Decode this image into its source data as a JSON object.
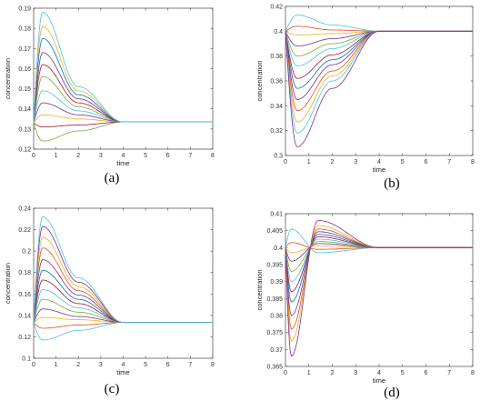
{
  "chart_data": [
    {
      "type": "line",
      "caption": "(a)",
      "xlabel": "time",
      "ylabel": "concentration",
      "xlim": [
        0,
        8
      ],
      "ylim": [
        0.12,
        0.19
      ],
      "xticks": [
        "0",
        "1",
        "2",
        "3",
        "4",
        "5",
        "6",
        "7",
        "8"
      ],
      "yticks": [
        "0.12",
        "0.13",
        "0.14",
        "0.15",
        "0.16",
        "0.17",
        "0.18",
        "0.19"
      ],
      "steady_state": 0.1335,
      "series": [
        {
          "color": "#77ac30",
          "x": [
            0,
            0.4,
            2,
            4,
            8
          ],
          "y": [
            0.133,
            0.124,
            0.129,
            0.1335,
            0.1335
          ]
        },
        {
          "color": "#a2142f",
          "x": [
            0,
            0.4,
            2,
            4,
            8
          ],
          "y": [
            0.133,
            0.131,
            0.132,
            0.1335,
            0.1335
          ]
        },
        {
          "color": "#edb120",
          "x": [
            0,
            0.4,
            2,
            4,
            8
          ],
          "y": [
            0.133,
            0.137,
            0.135,
            0.1335,
            0.1335
          ]
        },
        {
          "color": "#7e2f8e",
          "x": [
            0,
            0.4,
            2,
            4,
            8
          ],
          "y": [
            0.133,
            0.143,
            0.137,
            0.1335,
            0.1335
          ]
        },
        {
          "color": "#4dbeee",
          "x": [
            0,
            0.4,
            2,
            4,
            8
          ],
          "y": [
            0.133,
            0.149,
            0.139,
            0.1335,
            0.1335
          ]
        },
        {
          "color": "#77ac30",
          "x": [
            0,
            0.4,
            2,
            4,
            8
          ],
          "y": [
            0.133,
            0.156,
            0.141,
            0.1335,
            0.1335
          ]
        },
        {
          "color": "#a2142f",
          "x": [
            0,
            0.4,
            2,
            4,
            8
          ],
          "y": [
            0.133,
            0.162,
            0.143,
            0.1335,
            0.1335
          ]
        },
        {
          "color": "#7e2f8e",
          "x": [
            0,
            0.4,
            2,
            4,
            8
          ],
          "y": [
            0.133,
            0.168,
            0.145,
            0.1335,
            0.1335
          ]
        },
        {
          "color": "#0072bd",
          "x": [
            0,
            0.4,
            2,
            4,
            8
          ],
          "y": [
            0.133,
            0.175,
            0.147,
            0.1335,
            0.1335
          ]
        },
        {
          "color": "#edb120",
          "x": [
            0,
            0.4,
            2,
            4,
            8
          ],
          "y": [
            0.133,
            0.181,
            0.149,
            0.1335,
            0.1335
          ]
        },
        {
          "color": "#4dbeee",
          "x": [
            0,
            0.4,
            2,
            4,
            8
          ],
          "y": [
            0.133,
            0.188,
            0.151,
            0.1335,
            0.1335
          ]
        }
      ]
    },
    {
      "type": "line",
      "caption": "(b)",
      "xlabel": "time",
      "ylabel": "concentration",
      "xlim": [
        0,
        8
      ],
      "ylim": [
        0.3,
        0.42
      ],
      "xticks": [
        "0",
        "1",
        "2",
        "3",
        "4",
        "5",
        "6",
        "7",
        "8"
      ],
      "yticks": [
        "0.3",
        "0.32",
        "0.34",
        "0.36",
        "0.38",
        "0.4",
        "0.42"
      ],
      "steady_state": 0.4,
      "series": [
        {
          "color": "#4dbeee",
          "x": [
            0,
            0.5,
            2,
            4,
            8
          ],
          "y": [
            0.4,
            0.413,
            0.405,
            0.4,
            0.4
          ]
        },
        {
          "color": "#d95319",
          "x": [
            0,
            0.5,
            2,
            4,
            8
          ],
          "y": [
            0.4,
            0.404,
            0.401,
            0.4,
            0.4
          ]
        },
        {
          "color": "#edb120",
          "x": [
            0,
            0.5,
            2,
            4,
            8
          ],
          "y": [
            0.4,
            0.397,
            0.398,
            0.4,
            0.4
          ]
        },
        {
          "color": "#7e2f8e",
          "x": [
            0,
            0.5,
            2,
            4,
            8
          ],
          "y": [
            0.4,
            0.388,
            0.394,
            0.4,
            0.4
          ]
        },
        {
          "color": "#77ac30",
          "x": [
            0,
            0.5,
            2,
            4,
            8
          ],
          "y": [
            0.4,
            0.38,
            0.39,
            0.4,
            0.4
          ]
        },
        {
          "color": "#4dbeee",
          "x": [
            0,
            0.5,
            2,
            4,
            8
          ],
          "y": [
            0.4,
            0.372,
            0.386,
            0.4,
            0.4
          ]
        },
        {
          "color": "#a2142f",
          "x": [
            0,
            0.5,
            2,
            4,
            8
          ],
          "y": [
            0.4,
            0.362,
            0.381,
            0.4,
            0.4
          ]
        },
        {
          "color": "#0072bd",
          "x": [
            0,
            0.5,
            2,
            4,
            8
          ],
          "y": [
            0.4,
            0.354,
            0.377,
            0.4,
            0.4
          ]
        },
        {
          "color": "#7e2f8e",
          "x": [
            0,
            0.5,
            2,
            4,
            8
          ],
          "y": [
            0.4,
            0.345,
            0.373,
            0.4,
            0.4
          ]
        },
        {
          "color": "#d95319",
          "x": [
            0,
            0.5,
            2,
            4,
            8
          ],
          "y": [
            0.4,
            0.336,
            0.368,
            0.4,
            0.4
          ]
        },
        {
          "color": "#edb120",
          "x": [
            0,
            0.5,
            2,
            4,
            8
          ],
          "y": [
            0.4,
            0.327,
            0.364,
            0.4,
            0.4
          ]
        },
        {
          "color": "#4dbeee",
          "x": [
            0,
            0.5,
            2,
            4,
            8
          ],
          "y": [
            0.4,
            0.318,
            0.36,
            0.4,
            0.4
          ]
        },
        {
          "color": "#7e2f8e",
          "x": [
            0,
            0.5,
            2,
            4,
            8
          ],
          "y": [
            0.4,
            0.307,
            0.354,
            0.4,
            0.4
          ]
        }
      ]
    },
    {
      "type": "line",
      "caption": "(c)",
      "xlabel": "time",
      "ylabel": "concentration",
      "xlim": [
        0,
        8
      ],
      "ylim": [
        0.1,
        0.24
      ],
      "xticks": [
        "0",
        "1",
        "2",
        "3",
        "4",
        "5",
        "6",
        "7",
        "8"
      ],
      "yticks": [
        "0.1",
        "0.12",
        "0.14",
        "0.16",
        "0.18",
        "0.2",
        "0.22",
        "0.24"
      ],
      "steady_state": 0.1335,
      "series": [
        {
          "color": "#4dbeee",
          "x": [
            0,
            0.4,
            2,
            4,
            8
          ],
          "y": [
            0.133,
            0.117,
            0.126,
            0.1335,
            0.1335
          ]
        },
        {
          "color": "#d95319",
          "x": [
            0,
            0.4,
            2,
            4,
            8
          ],
          "y": [
            0.133,
            0.128,
            0.131,
            0.1335,
            0.1335
          ]
        },
        {
          "color": "#edb120",
          "x": [
            0,
            0.4,
            2,
            4,
            8
          ],
          "y": [
            0.133,
            0.138,
            0.136,
            0.1335,
            0.1335
          ]
        },
        {
          "color": "#7e2f8e",
          "x": [
            0,
            0.4,
            2,
            4,
            8
          ],
          "y": [
            0.133,
            0.146,
            0.139,
            0.1335,
            0.1335
          ]
        },
        {
          "color": "#77ac30",
          "x": [
            0,
            0.4,
            2,
            4,
            8
          ],
          "y": [
            0.133,
            0.155,
            0.143,
            0.1335,
            0.1335
          ]
        },
        {
          "color": "#4dbeee",
          "x": [
            0,
            0.4,
            2,
            4,
            8
          ],
          "y": [
            0.133,
            0.164,
            0.147,
            0.1335,
            0.1335
          ]
        },
        {
          "color": "#a2142f",
          "x": [
            0,
            0.4,
            2,
            4,
            8
          ],
          "y": [
            0.133,
            0.173,
            0.151,
            0.1335,
            0.1335
          ]
        },
        {
          "color": "#0072bd",
          "x": [
            0,
            0.4,
            2,
            4,
            8
          ],
          "y": [
            0.133,
            0.182,
            0.155,
            0.1335,
            0.1335
          ]
        },
        {
          "color": "#7e2f8e",
          "x": [
            0,
            0.4,
            2,
            4,
            8
          ],
          "y": [
            0.133,
            0.192,
            0.159,
            0.1335,
            0.1335
          ]
        },
        {
          "color": "#d95319",
          "x": [
            0,
            0.4,
            2,
            4,
            8
          ],
          "y": [
            0.133,
            0.203,
            0.163,
            0.1335,
            0.1335
          ]
        },
        {
          "color": "#edb120",
          "x": [
            0,
            0.4,
            2,
            4,
            8
          ],
          "y": [
            0.133,
            0.213,
            0.167,
            0.1335,
            0.1335
          ]
        },
        {
          "color": "#7e2f8e",
          "x": [
            0,
            0.4,
            2,
            4,
            8
          ],
          "y": [
            0.133,
            0.223,
            0.171,
            0.1335,
            0.1335
          ]
        },
        {
          "color": "#4dbeee",
          "x": [
            0,
            0.4,
            2,
            4,
            8
          ],
          "y": [
            0.133,
            0.232,
            0.175,
            0.1335,
            0.1335
          ]
        }
      ]
    },
    {
      "type": "line",
      "caption": "(d)",
      "xlabel": "time",
      "ylabel": "concentration",
      "xlim": [
        0,
        8
      ],
      "ylim": [
        0.365,
        0.41
      ],
      "xticks": [
        "0",
        "1",
        "2",
        "3",
        "4",
        "5",
        "6",
        "7",
        "8"
      ],
      "yticks": [
        "0.365",
        "0.37",
        "0.375",
        "0.38",
        "0.385",
        "0.39",
        "0.395",
        "0.4",
        "0.405",
        "0.41"
      ],
      "steady_state": 0.4,
      "series": [
        {
          "color": "#4dbeee",
          "x": [
            0,
            0.25,
            1.4,
            4,
            8
          ],
          "y": [
            0.4,
            0.4055,
            0.3985,
            0.4,
            0.4
          ]
        },
        {
          "color": "#d95319",
          "x": [
            0,
            0.25,
            1.4,
            4,
            8
          ],
          "y": [
            0.4,
            0.4015,
            0.3995,
            0.4,
            0.4
          ]
        },
        {
          "color": "#edb120",
          "x": [
            0,
            0.25,
            1.4,
            4,
            8
          ],
          "y": [
            0.4,
            0.3985,
            0.4005,
            0.4,
            0.4
          ]
        },
        {
          "color": "#7e2f8e",
          "x": [
            0,
            0.25,
            1.4,
            4,
            8
          ],
          "y": [
            0.4,
            0.396,
            0.4012,
            0.4,
            0.4
          ]
        },
        {
          "color": "#77ac30",
          "x": [
            0,
            0.25,
            1.4,
            4,
            8
          ],
          "y": [
            0.4,
            0.393,
            0.4018,
            0.4,
            0.4
          ]
        },
        {
          "color": "#4dbeee",
          "x": [
            0,
            0.25,
            1.4,
            4,
            8
          ],
          "y": [
            0.4,
            0.39,
            0.4025,
            0.4,
            0.4
          ]
        },
        {
          "color": "#a2142f",
          "x": [
            0,
            0.25,
            1.4,
            4,
            8
          ],
          "y": [
            0.4,
            0.387,
            0.4032,
            0.4,
            0.4
          ]
        },
        {
          "color": "#0072bd",
          "x": [
            0,
            0.25,
            1.4,
            4,
            8
          ],
          "y": [
            0.4,
            0.384,
            0.4039,
            0.4,
            0.4
          ]
        },
        {
          "color": "#7e2f8e",
          "x": [
            0,
            0.25,
            1.4,
            4,
            8
          ],
          "y": [
            0.4,
            0.38,
            0.4047,
            0.4,
            0.4
          ]
        },
        {
          "color": "#d95319",
          "x": [
            0,
            0.25,
            1.4,
            4,
            8
          ],
          "y": [
            0.4,
            0.376,
            0.4055,
            0.4,
            0.4
          ]
        },
        {
          "color": "#edb120",
          "x": [
            0,
            0.25,
            1.4,
            4,
            8
          ],
          "y": [
            0.4,
            0.3725,
            0.4065,
            0.4,
            0.4
          ]
        },
        {
          "color": "#7e2f8e",
          "x": [
            0,
            0.25,
            1.4,
            4,
            8
          ],
          "y": [
            0.4,
            0.368,
            0.408,
            0.4,
            0.4
          ]
        }
      ]
    }
  ]
}
